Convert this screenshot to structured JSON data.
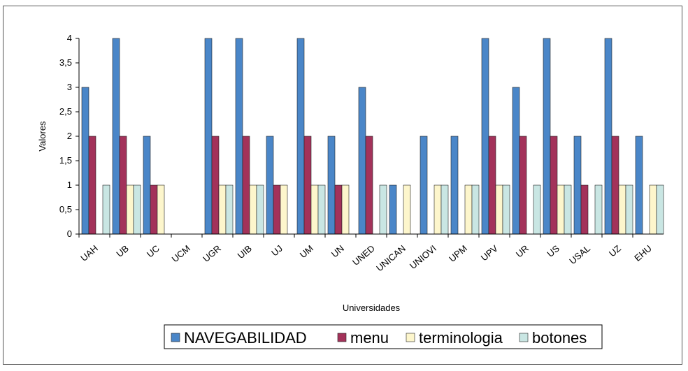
{
  "chart_data": {
    "type": "bar",
    "title": "",
    "xlabel": "Universidades",
    "ylabel": "Valores",
    "ylim": [
      0,
      4
    ],
    "yticks": [
      "0",
      "0,5",
      "1",
      "1,5",
      "2",
      "2,5",
      "3",
      "3,5",
      "4"
    ],
    "categories": [
      "UAH",
      "UB",
      "UC",
      "UCM",
      "UGR",
      "UIB",
      "UJ",
      "UM",
      "UN",
      "UNED",
      "UNICAN",
      "UNIOVI",
      "UPM",
      "UPV",
      "UR",
      "US",
      "USAL",
      "UZ",
      "EHU"
    ],
    "series": [
      {
        "name": "NAVEGABILIDAD",
        "color": "#4a86c8",
        "values": [
          3,
          4,
          2,
          0,
          4,
          4,
          2,
          4,
          2,
          3,
          1,
          2,
          2,
          4,
          3,
          4,
          2,
          4,
          2
        ]
      },
      {
        "name": "menu",
        "color": "#a3325a",
        "values": [
          2,
          2,
          1,
          0,
          2,
          2,
          1,
          2,
          1,
          2,
          0,
          0,
          0,
          2,
          2,
          2,
          1,
          2,
          0
        ]
      },
      {
        "name": "terminologia",
        "color": "#fdf6cc",
        "values": [
          0,
          1,
          1,
          0,
          1,
          1,
          1,
          1,
          1,
          0,
          1,
          1,
          1,
          1,
          0,
          1,
          0,
          1,
          1
        ]
      },
      {
        "name": "botones",
        "color": "#c9e6e3",
        "values": [
          1,
          1,
          0,
          0,
          1,
          1,
          0,
          1,
          0,
          1,
          0,
          1,
          1,
          1,
          1,
          1,
          1,
          1,
          1
        ]
      }
    ],
    "grid": false,
    "legend_position": "bottom"
  }
}
